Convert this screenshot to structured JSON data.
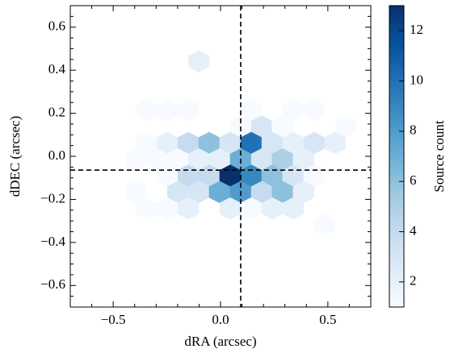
{
  "chart_data": {
    "type": "hexbin",
    "xlabel": "dRA (arcsec)",
    "ylabel": "dDEC (arcsec)",
    "xlim": [
      -0.7,
      0.7
    ],
    "ylim": [
      -0.7,
      0.7
    ],
    "xticks": [
      {
        "value": -0.5,
        "label": "−0.5"
      },
      {
        "value": 0,
        "label": "0.0"
      },
      0.5
    ],
    "yticks": [
      {
        "value": -0.6,
        "label": "−0.6"
      },
      {
        "value": -0.4,
        "label": "−0.4"
      },
      {
        "value": -0.2,
        "label": "−0.2"
      },
      {
        "value": 0,
        "label": "0.0"
      },
      0.2,
      0.4,
      0.6
    ],
    "xminorticks": [
      -0.6,
      -0.4,
      -0.3,
      -0.2,
      -0.1,
      0.1,
      0.2,
      0.3,
      0.4,
      0.6
    ],
    "yminorticks": [
      -0.65,
      -0.55,
      -0.5,
      -0.45,
      -0.35,
      -0.3,
      -0.25,
      -0.15,
      -0.1,
      -0.05,
      0.05,
      0.1,
      0.15,
      0.25,
      0.3,
      0.35,
      0.45,
      0.5,
      0.55,
      0.65
    ],
    "x": [
      -0.101,
      -0.346,
      -0.248,
      -0.15,
      0.143,
      0.338,
      0.436,
      0.094,
      0.192,
      0.289,
      0.583,
      -0.346,
      -0.248,
      -0.15,
      -0.053,
      0.045,
      0.143,
      0.241,
      0.338,
      0.436,
      0.534,
      -0.395,
      -0.297,
      -0.199,
      -0.101,
      -0.004,
      0.094,
      0.192,
      0.289,
      0.387,
      -0.248,
      -0.15,
      -0.053,
      0.045,
      0.143,
      0.241,
      0.338,
      0.436,
      -0.395,
      -0.199,
      -0.101,
      -0.004,
      0.094,
      0.192,
      0.289,
      0.387,
      -0.346,
      -0.248,
      -0.15,
      0.045,
      0.143,
      0.241,
      0.338,
      0.485
    ],
    "y": [
      0.442,
      0.214,
      0.214,
      0.214,
      0.214,
      0.214,
      0.214,
      0.138,
      0.138,
      0.138,
      0.138,
      0.062,
      0.062,
      0.062,
      0.062,
      0.062,
      0.062,
      0.062,
      0.062,
      0.062,
      0.062,
      -0.014,
      -0.014,
      -0.014,
      -0.014,
      -0.014,
      -0.014,
      -0.014,
      -0.014,
      -0.014,
      -0.09,
      -0.09,
      -0.09,
      -0.09,
      -0.09,
      -0.09,
      -0.09,
      -0.09,
      -0.166,
      -0.166,
      -0.166,
      -0.166,
      -0.166,
      -0.166,
      -0.166,
      -0.166,
      -0.242,
      -0.242,
      -0.242,
      -0.242,
      -0.242,
      -0.242,
      -0.242,
      -0.318
    ],
    "values": [
      2,
      1,
      1,
      1,
      1,
      1,
      1,
      1,
      3,
      1,
      1,
      1,
      2,
      4,
      6,
      3,
      10,
      3,
      2,
      3,
      2,
      1,
      1,
      1,
      2,
      2,
      7,
      3,
      5,
      2,
      1,
      4,
      4,
      13,
      9,
      6,
      3,
      1,
      1,
      3,
      3,
      7,
      8,
      4,
      6,
      2,
      1,
      1,
      2,
      2,
      1,
      2,
      2,
      1
    ],
    "colormap": [
      "#f7fbff",
      "#deebf7",
      "#c6dbef",
      "#9ecae1",
      "#6baed6",
      "#4292c6",
      "#2171b5",
      "#08519c",
      "#08306b"
    ],
    "clim": [
      1,
      13
    ],
    "cticks": [
      2,
      4,
      6,
      8,
      10,
      12
    ],
    "colorbar_label": "Source count",
    "vline": 0.094,
    "hline": -0.064,
    "line_color": "#000000"
  }
}
